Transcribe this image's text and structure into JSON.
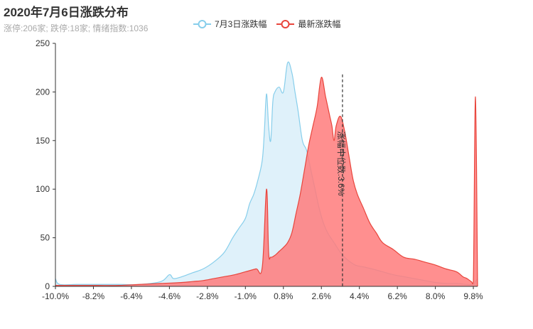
{
  "chart_data": {
    "type": "area",
    "title": "2020年7月6日涨跌分布",
    "subtitle": "涨停:206家; 跌停:18家; 情绪指数:1036",
    "xlabel": "",
    "ylabel": "",
    "x_ticks": [
      "-10.0%",
      "-8.2%",
      "-6.4%",
      "-4.6%",
      "-2.8%",
      "-1.0%",
      "0.8%",
      "2.6%",
      "4.4%",
      "6.2%",
      "8.0%",
      "9.8%"
    ],
    "xlim": [
      -10.0,
      10.0
    ],
    "ylim": [
      0,
      250
    ],
    "y_ticks": [
      0,
      50,
      100,
      150,
      200,
      250
    ],
    "grid": false,
    "legend_position": "top-center",
    "colors": {
      "prev": "#87ceeb",
      "prev_fill": "#dff1fa",
      "latest": "#e8453c",
      "latest_fill": "#ff7b7b"
    },
    "series": [
      {
        "name": "7月3日涨跌幅",
        "x": [
          -10.0,
          -9.8,
          -9.0,
          -8.0,
          -7.0,
          -6.0,
          -5.0,
          -4.6,
          -4.4,
          -4.0,
          -3.5,
          -3.0,
          -2.5,
          -2.0,
          -1.6,
          -1.3,
          -1.0,
          -0.8,
          -0.6,
          -0.4,
          -0.2,
          -0.1,
          0.0,
          0.1,
          0.2,
          0.3,
          0.4,
          0.6,
          0.8,
          1.0,
          1.2,
          1.35,
          1.5,
          1.7,
          1.9,
          2.1,
          2.3,
          2.5,
          2.7,
          2.9,
          3.2,
          3.5,
          3.8,
          4.2,
          4.6,
          5.0,
          5.5,
          6.0,
          6.5,
          7.0,
          7.5,
          8.0,
          8.5,
          9.0,
          9.5,
          9.8,
          9.9,
          10.0
        ],
        "values": [
          8,
          2,
          2,
          2,
          2,
          2,
          5,
          12,
          8,
          10,
          14,
          18,
          25,
          35,
          50,
          60,
          70,
          85,
          95,
          110,
          130,
          160,
          198,
          165,
          150,
          190,
          200,
          205,
          200,
          230,
          220,
          200,
          180,
          150,
          140,
          120,
          100,
          80,
          65,
          55,
          45,
          35,
          28,
          22,
          20,
          18,
          15,
          12,
          10,
          8,
          6,
          4,
          3,
          3,
          2,
          2,
          5,
          8
        ]
      },
      {
        "name": "最新涨跌幅",
        "x": [
          -10.0,
          -9.0,
          -8.0,
          -7.0,
          -6.0,
          -5.0,
          -4.0,
          -3.5,
          -3.0,
          -2.5,
          -2.0,
          -1.5,
          -1.0,
          -0.5,
          -0.2,
          0.0,
          0.1,
          0.2,
          0.4,
          0.6,
          0.8,
          1.0,
          1.2,
          1.4,
          1.6,
          1.8,
          2.0,
          2.2,
          2.4,
          2.6,
          2.8,
          3.0,
          3.1,
          3.2,
          3.3,
          3.5,
          3.7,
          3.9,
          4.1,
          4.3,
          4.6,
          4.9,
          5.2,
          5.5,
          6.0,
          6.5,
          7.0,
          7.5,
          8.0,
          8.5,
          9.0,
          9.3,
          9.5,
          9.7,
          9.8,
          9.9,
          10.0
        ],
        "values": [
          1,
          1,
          1,
          1,
          2,
          3,
          4,
          5,
          6,
          8,
          10,
          12,
          15,
          18,
          20,
          100,
          35,
          30,
          32,
          36,
          40,
          45,
          55,
          75,
          95,
          120,
          145,
          165,
          185,
          215,
          195,
          175,
          165,
          150,
          165,
          175,
          160,
          135,
          110,
          95,
          80,
          65,
          55,
          45,
          38,
          30,
          28,
          25,
          22,
          18,
          15,
          10,
          8,
          5,
          5,
          195,
          0
        ]
      }
    ],
    "annotation": {
      "label": "涨幅中位数:3.6%",
      "x": 3.6,
      "top": 218
    }
  }
}
